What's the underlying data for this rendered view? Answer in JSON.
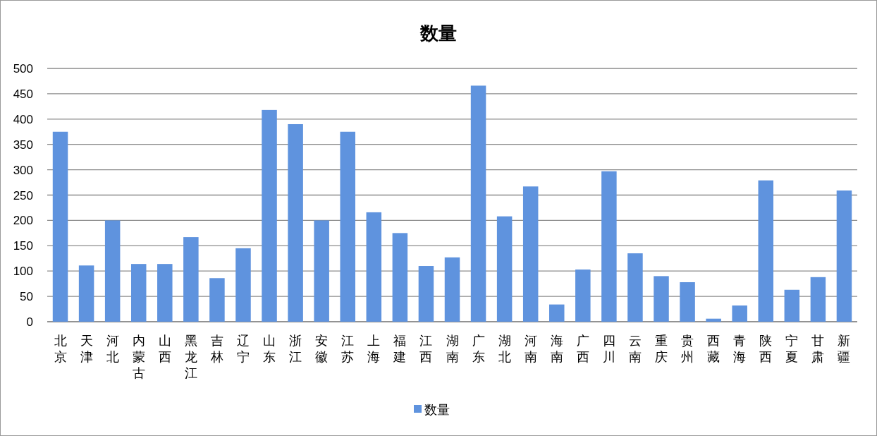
{
  "chart_data": {
    "type": "bar",
    "title": "数量",
    "categories": [
      "北京",
      "天津",
      "河北",
      "内蒙古",
      "山西",
      "黑龙江",
      "吉林",
      "辽宁",
      "山东",
      "浙江",
      "安徽",
      "江苏",
      "上海",
      "福建",
      "江西",
      "湖南",
      "广东",
      "湖北",
      "河南",
      "海南",
      "广西",
      "四川",
      "云南",
      "重庆",
      "贵州",
      "西藏",
      "青海",
      "陕西",
      "宁夏",
      "甘肃",
      "新疆"
    ],
    "series": [
      {
        "name": "数量",
        "color": "#5f93de",
        "values": [
          375,
          111,
          200,
          114,
          114,
          167,
          86,
          145,
          418,
          390,
          200,
          375,
          216,
          175,
          110,
          127,
          466,
          208,
          267,
          34,
          103,
          297,
          135,
          90,
          78,
          6,
          32,
          279,
          63,
          88,
          259
        ]
      }
    ],
    "ylim": [
      0,
      500
    ],
    "yticks": [
      0,
      50,
      100,
      150,
      200,
      250,
      300,
      350,
      400,
      450,
      500
    ],
    "grid": "y",
    "legend": "bottom"
  }
}
